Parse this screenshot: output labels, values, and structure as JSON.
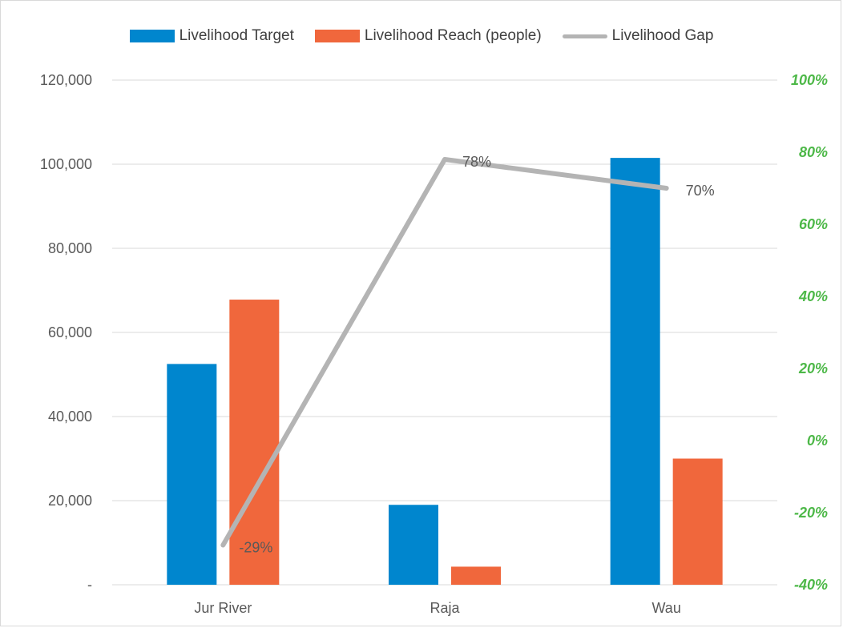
{
  "chart_data": {
    "type": "bar",
    "categories": [
      "Jur River",
      "Raja",
      "Wau"
    ],
    "series": [
      {
        "name": "Livelihood Target",
        "type": "bar",
        "axis": "left",
        "color": "#0086CE",
        "values": [
          52500,
          19000,
          101500
        ]
      },
      {
        "name": "Livelihood Reach (people)",
        "type": "bar",
        "axis": "left",
        "color": "#F0673C",
        "values": [
          67800,
          4300,
          30000
        ]
      },
      {
        "name": "Livelihood Gap",
        "type": "line",
        "axis": "right",
        "color": "#B4B4B4",
        "values": [
          -0.29,
          0.78,
          0.7
        ],
        "labels": [
          "-29%",
          "78%",
          "70%"
        ]
      }
    ],
    "y_left": {
      "lim": [
        0,
        120000
      ],
      "ticks": [
        0,
        20000,
        40000,
        60000,
        80000,
        100000,
        120000
      ],
      "tick_labels": [
        "-",
        "20,000",
        "40,000",
        "60,000",
        "80,000",
        "100,000",
        "120,000"
      ]
    },
    "y_right": {
      "lim": [
        -0.4,
        1.0
      ],
      "ticks": [
        -0.4,
        -0.2,
        0,
        0.2,
        0.4,
        0.6,
        0.8,
        1.0
      ],
      "tick_labels": [
        "-40%",
        "-20%",
        "0%",
        "20%",
        "40%",
        "60%",
        "80%",
        "100%"
      ],
      "color": "#4DB848"
    },
    "grid": true,
    "legend_position": "top",
    "gridline_color": "#D9D9D9",
    "axis_label_color": "#595959"
  }
}
